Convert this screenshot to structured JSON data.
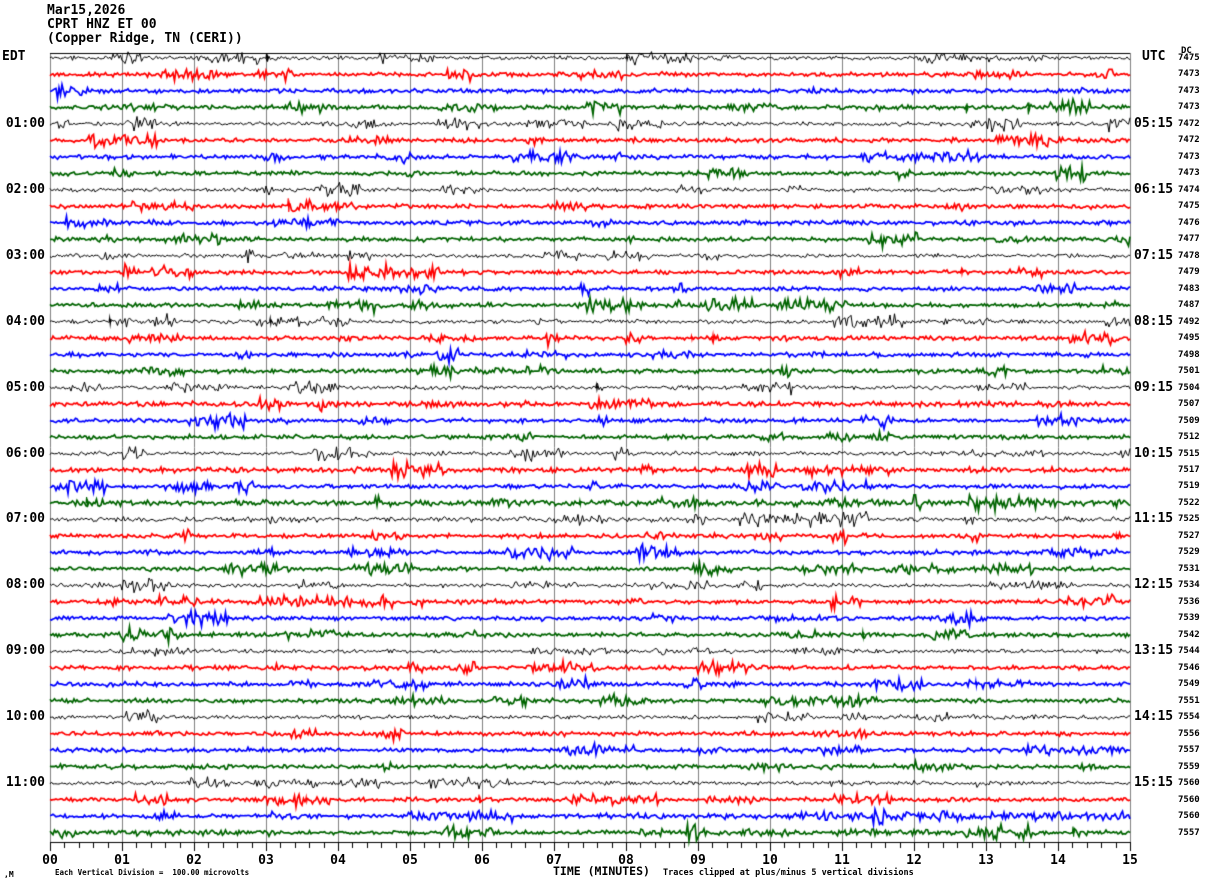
{
  "title": {
    "date": "Mar15,2026",
    "station": "CPRT HNZ ET 00",
    "location": "(Copper Ridge, TN (CERI))"
  },
  "timezone_left": "EDT",
  "timezone_right": "UTC",
  "dc_header": "DC",
  "footer": {
    "scale_note": "Each Vertical Division =  100.00 microvolts",
    "x_axis_title": "TIME (MINUTES)",
    "clip_note": "Traces clipped at plus/minus 5 vertical divisions",
    "watermark": ",M"
  },
  "chart_data": {
    "type": "line",
    "subtype": "helicorder_seismogram",
    "title": "CPRT HNZ ET 00 (Copper Ridge, TN (CERI)) Mar15,2026",
    "xlabel": "TIME (MINUTES)",
    "x_range_minutes": [
      0,
      15
    ],
    "x_tick_labels": [
      "00",
      "01",
      "02",
      "03",
      "04",
      "05",
      "06",
      "07",
      "08",
      "09",
      "10",
      "11",
      "12",
      "13",
      "14",
      "15"
    ],
    "minor_ticks_per_minute": 5,
    "minutes_per_line": 15,
    "num_lines": 48,
    "grid": "vertical-only",
    "vertical_division_microvolts": 100.0,
    "clip_divisions": 5,
    "palette": {
      "black": "#000000",
      "red": "#ff0000",
      "blue": "#0000ff",
      "green": "#006400",
      "grid": "#808080"
    },
    "color_cycle": [
      "black",
      "red",
      "blue",
      "green"
    ],
    "rows": [
      {
        "edt_label": "",
        "utc_label": "",
        "dc": "7475",
        "color": "black"
      },
      {
        "edt_label": "",
        "utc_label": "",
        "dc": "7473",
        "color": "red"
      },
      {
        "edt_label": "",
        "utc_label": "",
        "dc": "7473",
        "color": "blue"
      },
      {
        "edt_label": "",
        "utc_label": "",
        "dc": "7473",
        "color": "green"
      },
      {
        "edt_label": "01:00",
        "utc_label": "05:15",
        "dc": "7472",
        "color": "black"
      },
      {
        "edt_label": "",
        "utc_label": "",
        "dc": "7472",
        "color": "red"
      },
      {
        "edt_label": "",
        "utc_label": "",
        "dc": "7473",
        "color": "blue"
      },
      {
        "edt_label": "",
        "utc_label": "",
        "dc": "7473",
        "color": "green"
      },
      {
        "edt_label": "02:00",
        "utc_label": "06:15",
        "dc": "7474",
        "color": "black"
      },
      {
        "edt_label": "",
        "utc_label": "",
        "dc": "7475",
        "color": "red"
      },
      {
        "edt_label": "",
        "utc_label": "",
        "dc": "7476",
        "color": "blue"
      },
      {
        "edt_label": "",
        "utc_label": "",
        "dc": "7477",
        "color": "green"
      },
      {
        "edt_label": "03:00",
        "utc_label": "07:15",
        "dc": "7478",
        "color": "black"
      },
      {
        "edt_label": "",
        "utc_label": "",
        "dc": "7479",
        "color": "red"
      },
      {
        "edt_label": "",
        "utc_label": "",
        "dc": "7483",
        "color": "blue"
      },
      {
        "edt_label": "",
        "utc_label": "",
        "dc": "7487",
        "color": "green"
      },
      {
        "edt_label": "04:00",
        "utc_label": "08:15",
        "dc": "7492",
        "color": "black"
      },
      {
        "edt_label": "",
        "utc_label": "",
        "dc": "7495",
        "color": "red"
      },
      {
        "edt_label": "",
        "utc_label": "",
        "dc": "7498",
        "color": "blue"
      },
      {
        "edt_label": "",
        "utc_label": "",
        "dc": "7501",
        "color": "green"
      },
      {
        "edt_label": "05:00",
        "utc_label": "09:15",
        "dc": "7504",
        "color": "black"
      },
      {
        "edt_label": "",
        "utc_label": "",
        "dc": "7507",
        "color": "red"
      },
      {
        "edt_label": "",
        "utc_label": "",
        "dc": "7509",
        "color": "blue"
      },
      {
        "edt_label": "",
        "utc_label": "",
        "dc": "7512",
        "color": "green"
      },
      {
        "edt_label": "06:00",
        "utc_label": "10:15",
        "dc": "7515",
        "color": "black"
      },
      {
        "edt_label": "",
        "utc_label": "",
        "dc": "7517",
        "color": "red"
      },
      {
        "edt_label": "",
        "utc_label": "",
        "dc": "7519",
        "color": "blue"
      },
      {
        "edt_label": "",
        "utc_label": "",
        "dc": "7522",
        "color": "green"
      },
      {
        "edt_label": "07:00",
        "utc_label": "11:15",
        "dc": "7525",
        "color": "black"
      },
      {
        "edt_label": "",
        "utc_label": "",
        "dc": "7527",
        "color": "red"
      },
      {
        "edt_label": "",
        "utc_label": "",
        "dc": "7529",
        "color": "blue"
      },
      {
        "edt_label": "",
        "utc_label": "",
        "dc": "7531",
        "color": "green"
      },
      {
        "edt_label": "08:00",
        "utc_label": "12:15",
        "dc": "7534",
        "color": "black"
      },
      {
        "edt_label": "",
        "utc_label": "",
        "dc": "7536",
        "color": "red"
      },
      {
        "edt_label": "",
        "utc_label": "",
        "dc": "7539",
        "color": "blue"
      },
      {
        "edt_label": "",
        "utc_label": "",
        "dc": "7542",
        "color": "green"
      },
      {
        "edt_label": "09:00",
        "utc_label": "13:15",
        "dc": "7544",
        "color": "black"
      },
      {
        "edt_label": "",
        "utc_label": "",
        "dc": "7546",
        "color": "red"
      },
      {
        "edt_label": "",
        "utc_label": "",
        "dc": "7549",
        "color": "blue"
      },
      {
        "edt_label": "",
        "utc_label": "",
        "dc": "7551",
        "color": "green"
      },
      {
        "edt_label": "10:00",
        "utc_label": "14:15",
        "dc": "7554",
        "color": "black"
      },
      {
        "edt_label": "",
        "utc_label": "",
        "dc": "7556",
        "color": "red"
      },
      {
        "edt_label": "",
        "utc_label": "",
        "dc": "7557",
        "color": "blue"
      },
      {
        "edt_label": "",
        "utc_label": "",
        "dc": "7559",
        "color": "green"
      },
      {
        "edt_label": "11:00",
        "utc_label": "15:15",
        "dc": "7560",
        "color": "black"
      },
      {
        "edt_label": "",
        "utc_label": "",
        "dc": "7560",
        "color": "red"
      },
      {
        "edt_label": "",
        "utc_label": "",
        "dc": "7560",
        "color": "blue"
      },
      {
        "edt_label": "",
        "utc_label": "",
        "dc": "7557",
        "color": "green"
      }
    ],
    "events": [
      {
        "row": 0,
        "t": 3.0,
        "dur": 0.15,
        "amp": 5
      },
      {
        "row": 0,
        "t": 8.0,
        "dur": 0.5,
        "amp": 2.2
      },
      {
        "row": 3,
        "t": 12.72,
        "dur": 0.06,
        "amp": 6,
        "sign": -1
      },
      {
        "row": 3,
        "t": 13.58,
        "dur": 0.06,
        "amp": 7,
        "sign": -1
      },
      {
        "row": 9,
        "t": 3.3,
        "dur": 0.22,
        "amp": 8
      },
      {
        "row": 13,
        "t": 12.65,
        "dur": 0.07,
        "amp": 3
      },
      {
        "row": 16,
        "t": 0.82,
        "dur": 0.4,
        "amp": 4
      },
      {
        "row": 16,
        "t": 3.05,
        "dur": 0.1,
        "amp": 3.5
      },
      {
        "row": 17,
        "t": 8.9,
        "dur": 0.08,
        "amp": 2.5
      },
      {
        "row": 17,
        "t": 9.2,
        "dur": 0.12,
        "amp": 4
      },
      {
        "row": 20,
        "t": 7.58,
        "dur": 0.08,
        "amp": 3
      },
      {
        "row": 27,
        "t": 0.5,
        "dur": 0.25,
        "amp": 6
      },
      {
        "row": 27,
        "t": 7.35,
        "dur": 0.08,
        "amp": 3
      },
      {
        "row": 29,
        "t": 14.8,
        "dur": 0.08,
        "amp": 2.5
      },
      {
        "row": 35,
        "t": 11.28,
        "dur": 0.08,
        "amp": 4
      },
      {
        "row": 38,
        "t": 12.85,
        "dur": 0.08,
        "amp": 4
      },
      {
        "row": 45,
        "t": 3.55,
        "dur": 0.08,
        "amp": 3
      },
      {
        "row": 45,
        "t": 5.95,
        "dur": 0.12,
        "amp": 5
      },
      {
        "row": 47,
        "t": 14.2,
        "dur": 0.08,
        "amp": 6
      }
    ],
    "noise_segments": [
      {
        "row": 21,
        "from": 0,
        "to": 15,
        "factor": 1.25
      },
      {
        "row": 25,
        "from": 0,
        "to": 15,
        "factor": 1.2
      },
      {
        "row": 27,
        "from": 0.3,
        "to": 15,
        "factor": 1.3
      },
      {
        "row": 28,
        "from": 0,
        "to": 15,
        "factor": 1.25
      },
      {
        "row": 46,
        "from": 7.5,
        "to": 10.4,
        "factor": 1.4
      },
      {
        "row": 46,
        "from": 10.4,
        "to": 15,
        "factor": 2.0
      },
      {
        "row": 47,
        "from": 0.8,
        "to": 3.2,
        "factor": 1.5
      },
      {
        "row": 47,
        "from": 8.2,
        "to": 9.3,
        "factor": 2.2
      },
      {
        "row": 47,
        "from": 9.6,
        "to": 10.3,
        "factor": 1.8
      },
      {
        "row": 47,
        "from": 10.9,
        "to": 12.6,
        "factor": 2.0
      }
    ]
  }
}
